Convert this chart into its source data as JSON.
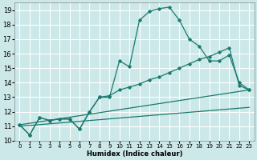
{
  "xlabel": "Humidex (Indice chaleur)",
  "bg_color": "#cce8e8",
  "grid_color": "#ffffff",
  "line_color": "#1a7a6e",
  "xlim": [
    -0.5,
    23.5
  ],
  "ylim": [
    10,
    19.5
  ],
  "xticks": [
    0,
    1,
    2,
    3,
    4,
    5,
    6,
    7,
    8,
    9,
    10,
    11,
    12,
    13,
    14,
    15,
    16,
    17,
    18,
    19,
    20,
    21,
    22,
    23
  ],
  "yticks": [
    10,
    11,
    12,
    13,
    14,
    15,
    16,
    17,
    18,
    19
  ],
  "series1_x": [
    0,
    1,
    2,
    3,
    4,
    5,
    6,
    7,
    8,
    9,
    10,
    11,
    12,
    13,
    14,
    15,
    16,
    17,
    18,
    19,
    20,
    21,
    22,
    23
  ],
  "series1_y": [
    11.1,
    10.4,
    11.6,
    11.4,
    11.5,
    11.5,
    10.8,
    12.0,
    13.0,
    13.0,
    15.5,
    15.1,
    18.3,
    18.9,
    19.1,
    19.2,
    18.3,
    17.0,
    16.5,
    15.5,
    15.5,
    15.9,
    14.0,
    13.5
  ],
  "series2_x": [
    0,
    1,
    2,
    3,
    4,
    5,
    6,
    7,
    8,
    9,
    10,
    11,
    12,
    13,
    14,
    15,
    16,
    17,
    18,
    19,
    20,
    21,
    22,
    23
  ],
  "series2_y": [
    11.1,
    10.4,
    11.6,
    11.4,
    11.5,
    11.5,
    10.8,
    12.0,
    13.0,
    13.1,
    13.5,
    13.7,
    13.9,
    14.2,
    14.4,
    14.7,
    15.0,
    15.3,
    15.6,
    15.8,
    16.1,
    16.4,
    13.8,
    13.5
  ],
  "series3_x": [
    0,
    23
  ],
  "series3_y": [
    11.1,
    13.5
  ],
  "series4_x": [
    0,
    23
  ],
  "series4_y": [
    11.0,
    12.3
  ]
}
